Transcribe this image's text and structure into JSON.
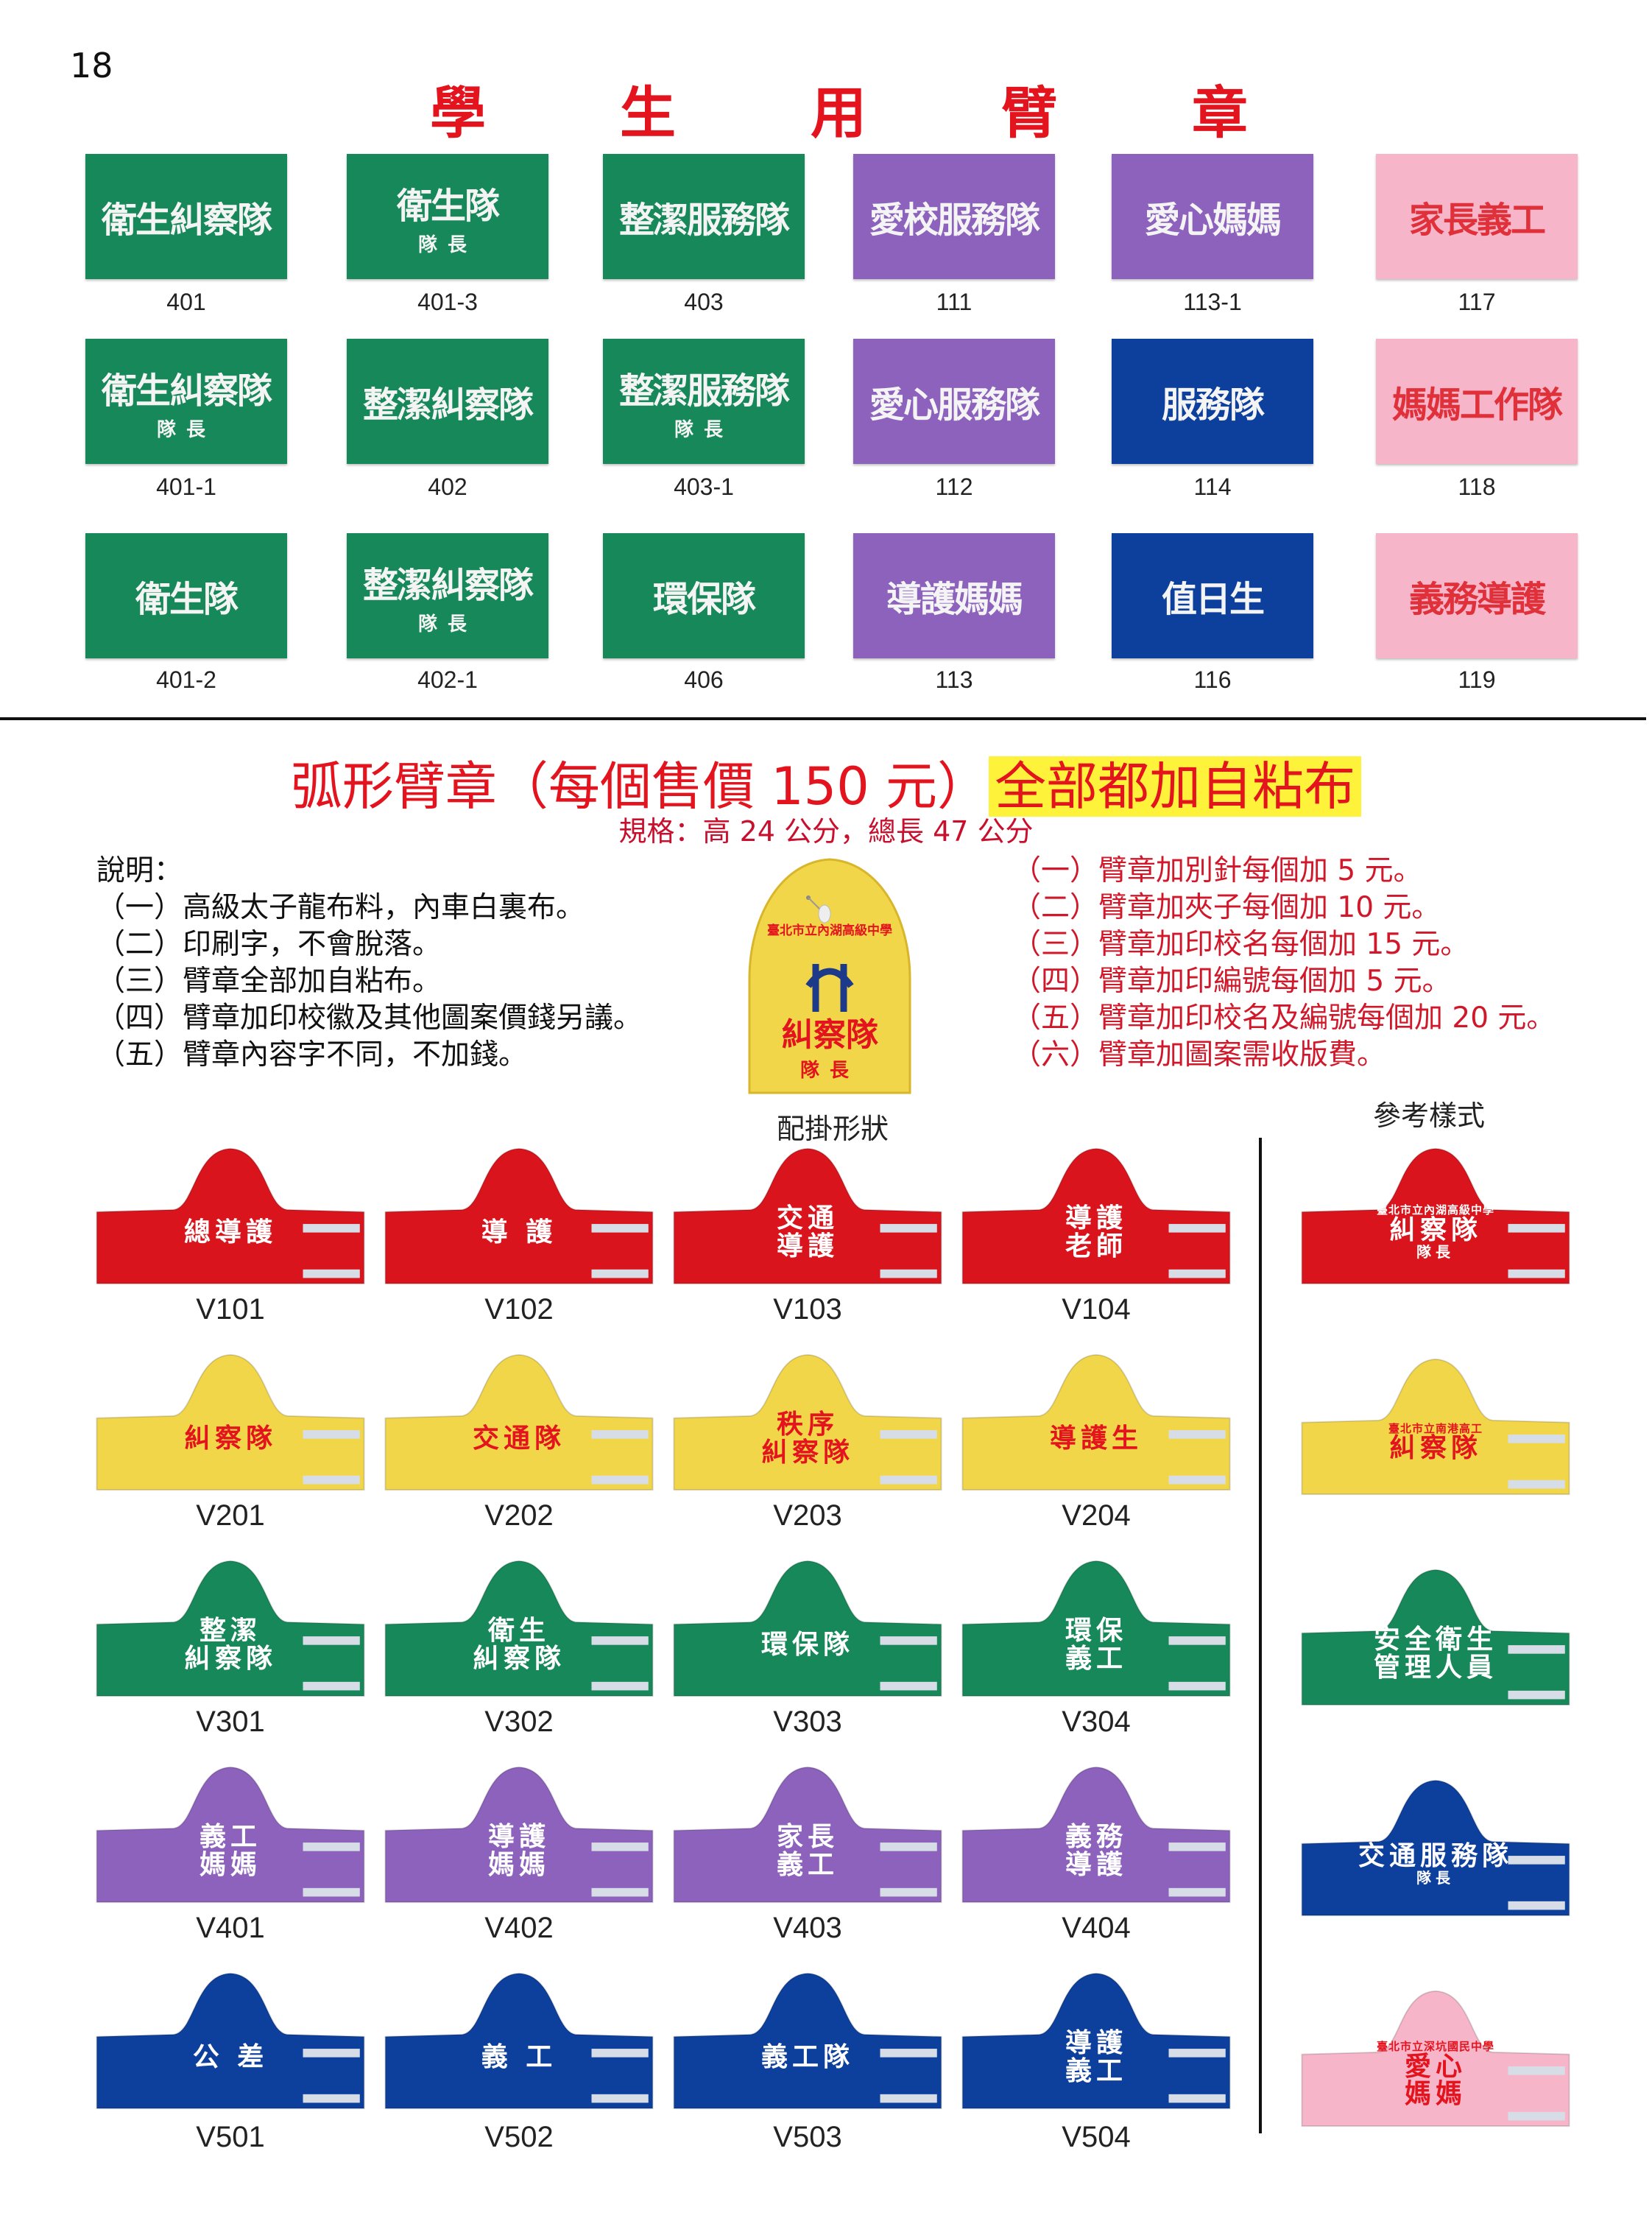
{
  "page_number": "18",
  "title_chars": [
    "學",
    "生",
    "用",
    "臂",
    "章"
  ],
  "colors": {
    "green": "#17885a",
    "purple": "#8c62bd",
    "blue": "#0d3f9c",
    "pink": "#f6b5c9",
    "red": "#d9141c",
    "yellow": "#f2d64a",
    "title_red": "#e3141e",
    "highlight": "#fff23a"
  },
  "rect_armbands": [
    {
      "code": "401",
      "color": "green",
      "text": "衛生糾察隊",
      "sub": ""
    },
    {
      "code": "401-3",
      "color": "green",
      "text": "衛生隊",
      "sub": "隊長"
    },
    {
      "code": "403",
      "color": "green",
      "text": "整潔服務隊",
      "sub": ""
    },
    {
      "code": "111",
      "color": "purple",
      "text": "愛校服務隊",
      "sub": ""
    },
    {
      "code": "113-1",
      "color": "purple",
      "text": "愛心媽媽",
      "sub": ""
    },
    {
      "code": "117",
      "color": "pink",
      "text": "家長義工",
      "sub": ""
    },
    {
      "code": "401-1",
      "color": "green",
      "text": "衛生糾察隊",
      "sub": "隊長"
    },
    {
      "code": "402",
      "color": "green",
      "text": "整潔糾察隊",
      "sub": ""
    },
    {
      "code": "403-1",
      "color": "green",
      "text": "整潔服務隊",
      "sub": "隊長"
    },
    {
      "code": "112",
      "color": "purple",
      "text": "愛心服務隊",
      "sub": ""
    },
    {
      "code": "114",
      "color": "blue",
      "text": "服務隊",
      "sub": ""
    },
    {
      "code": "118",
      "color": "pink",
      "text": "媽媽工作隊",
      "sub": ""
    },
    {
      "code": "401-2",
      "color": "green",
      "text": "衛生隊",
      "sub": ""
    },
    {
      "code": "402-1",
      "color": "green",
      "text": "整潔糾察隊",
      "sub": "隊長"
    },
    {
      "code": "406",
      "color": "green",
      "text": "環保隊",
      "sub": ""
    },
    {
      "code": "113",
      "color": "purple",
      "text": "導護媽媽",
      "sub": ""
    },
    {
      "code": "116",
      "color": "blue",
      "text": "值日生",
      "sub": ""
    },
    {
      "code": "119",
      "color": "pink",
      "text": "義務導護",
      "sub": ""
    }
  ],
  "arc_section": {
    "title": "弧形臂章（每個售價 150 元）",
    "title_highlight": "全部都加自粘布",
    "spec": "規格：高 24 公分，總長 47 公分",
    "notes_left": [
      "說明：",
      "（一）高級太子龍布料，內車白裏布。",
      "（二）印刷字，不會脫落。",
      "（三）臂章全部加自粘布。",
      "（四）臂章加印校徽及其他圖案價錢另議。",
      "（五）臂章內容字不同，不加錢。"
    ],
    "notes_right": [
      "（一）臂章加別針每個加 5 元。",
      "（二）臂章加夾子每個加 10 元。",
      "（三）臂章加印校名每個加 15 元。",
      "（四）臂章加印編號每個加 5 元。",
      "（五）臂章加印校名及編號每個加 20 元。",
      "（六）臂章加圖案需收版費。"
    ],
    "hanging_example": {
      "school": "臺北市立內湖高級中學",
      "text": "糾察隊",
      "sub": "隊長",
      "label": "配掛形狀"
    },
    "sample_label": "參考樣式"
  },
  "arc_armbands": [
    {
      "code": "V101",
      "color": "red",
      "lines": [
        "總導護"
      ]
    },
    {
      "code": "V102",
      "color": "red",
      "lines": [
        "導 護"
      ]
    },
    {
      "code": "V103",
      "color": "red",
      "lines": [
        "交通",
        "導護"
      ]
    },
    {
      "code": "V104",
      "color": "red",
      "lines": [
        "導護",
        "老師"
      ]
    },
    {
      "code": "V201",
      "color": "yellow",
      "lines": [
        "糾察隊"
      ]
    },
    {
      "code": "V202",
      "color": "yellow",
      "lines": [
        "交通隊"
      ]
    },
    {
      "code": "V203",
      "color": "yellow",
      "lines": [
        "秩序",
        "糾察隊"
      ]
    },
    {
      "code": "V204",
      "color": "yellow",
      "lines": [
        "導護生"
      ]
    },
    {
      "code": "V301",
      "color": "green",
      "lines": [
        "整潔",
        "糾察隊"
      ]
    },
    {
      "code": "V302",
      "color": "green",
      "lines": [
        "衛生",
        "糾察隊"
      ]
    },
    {
      "code": "V303",
      "color": "green",
      "lines": [
        "環保隊"
      ]
    },
    {
      "code": "V304",
      "color": "green",
      "lines": [
        "環保",
        "義工"
      ]
    },
    {
      "code": "V401",
      "color": "purple",
      "lines": [
        "義工",
        "媽媽"
      ]
    },
    {
      "code": "V402",
      "color": "purple",
      "lines": [
        "導護",
        "媽媽"
      ]
    },
    {
      "code": "V403",
      "color": "purple",
      "lines": [
        "家長",
        "義工"
      ]
    },
    {
      "code": "V404",
      "color": "purple",
      "lines": [
        "義務",
        "導護"
      ]
    },
    {
      "code": "V501",
      "color": "blue",
      "lines": [
        "公 差"
      ]
    },
    {
      "code": "V502",
      "color": "blue",
      "lines": [
        "義 工"
      ]
    },
    {
      "code": "V503",
      "color": "blue",
      "lines": [
        "義工隊"
      ]
    },
    {
      "code": "V504",
      "color": "blue",
      "lines": [
        "導護",
        "義工"
      ]
    }
  ],
  "sample_armbands": [
    {
      "color": "red",
      "school": "臺北市立內湖高級中學",
      "lines": [
        "糾察隊"
      ],
      "sub": "隊長"
    },
    {
      "color": "yellow",
      "school": "臺北市立南港高工",
      "lines": [
        "糾察隊"
      ],
      "sub": ""
    },
    {
      "color": "green",
      "school": "",
      "lines": [
        "安全衛生",
        "管理人員"
      ],
      "sub": ""
    },
    {
      "color": "blue",
      "school": "",
      "lines": [
        "交通服務隊"
      ],
      "sub": "隊長"
    },
    {
      "color": "pink",
      "school": "臺北市立深坑國民中學",
      "lines": [
        "愛心",
        "媽媽"
      ],
      "sub": ""
    }
  ]
}
